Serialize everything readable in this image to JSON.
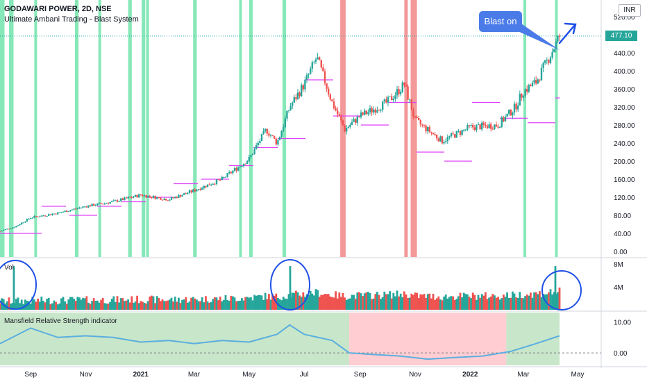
{
  "header": {
    "title": "GODAWARI POWER, 2D, NSE",
    "subtitle": "Ultimate Ambani Trading - Blast System",
    "currency": "INR",
    "last_price": "477.10"
  },
  "annotation": {
    "callout_text": "Blast on"
  },
  "colors": {
    "bull": "#26a69a",
    "bear": "#ef5350",
    "magenta_level": "#e040fb",
    "green_band": "#5ee0a0",
    "red_band": "#f08080",
    "rs_line": "#5aaee0",
    "rs_pos_fill": "#c8e6c9",
    "rs_neg_fill": "#ffcdd2",
    "circle": "#1e4fe6"
  },
  "chart_data": [
    {
      "type": "candlestick",
      "title": "GODAWARI POWER, 2D, NSE",
      "x": [
        "2020-07-29",
        "2020-08-15",
        "2020-09-01",
        "2020-10-01",
        "2020-11-01",
        "2020-12-01",
        "2021-01-01",
        "2021-02-01",
        "2021-03-01",
        "2021-04-01",
        "2021-05-01",
        "2021-05-20",
        "2021-06-01",
        "2021-06-15",
        "2021-07-01",
        "2021-07-15",
        "2021-08-01",
        "2021-08-15",
        "2021-09-01",
        "2021-10-01",
        "2021-10-20",
        "2021-11-01",
        "2021-12-01",
        "2022-01-01",
        "2022-02-01",
        "2022-02-20",
        "2022-03-01",
        "2022-03-15",
        "2022-04-01",
        "2022-04-10"
      ],
      "close": [
        45,
        55,
        75,
        85,
        100,
        110,
        125,
        115,
        135,
        160,
        205,
        270,
        240,
        320,
        370,
        430,
        330,
        270,
        300,
        330,
        370,
        290,
        245,
        275,
        280,
        320,
        355,
        375,
        440,
        477.1
      ],
      "ylim": [
        0,
        540
      ],
      "y_ticks": [
        "0.00",
        "40.00",
        "80.00",
        "120.00",
        "160.00",
        "200.00",
        "240.00",
        "280.00",
        "320.00",
        "360.00",
        "400.00",
        "440.00",
        "480.00",
        "520.00"
      ],
      "x_ticks": [
        "Sep",
        "Nov",
        "2021",
        "Mar",
        "May",
        "Jul",
        "Sep",
        "Nov",
        "2022",
        "Mar",
        "May"
      ],
      "signal_bands_green": [
        [
          "2020-07-29",
          "2020-08-03"
        ],
        [
          "2020-08-08",
          "2020-08-13"
        ],
        [
          "2020-09-05",
          "2020-09-08"
        ],
        [
          "2020-10-20",
          "2020-10-24"
        ],
        [
          "2020-11-15",
          "2020-11-18"
        ],
        [
          "2020-12-18",
          "2020-12-22"
        ],
        [
          "2021-01-02",
          "2021-01-06"
        ],
        [
          "2021-01-07",
          "2021-01-10"
        ],
        [
          "2021-02-28",
          "2021-03-04"
        ],
        [
          "2021-04-20",
          "2021-04-23"
        ],
        [
          "2021-05-01",
          "2021-05-05"
        ],
        [
          "2021-06-07",
          "2021-06-11"
        ],
        [
          "2022-03-01",
          "2022-03-04"
        ],
        [
          "2022-04-05",
          "2022-04-08"
        ]
      ],
      "signal_bands_red": [
        [
          "2021-08-10",
          "2021-08-16"
        ],
        [
          "2021-10-20",
          "2021-10-23"
        ],
        [
          "2021-10-27",
          "2021-11-03"
        ]
      ]
    },
    {
      "type": "bar",
      "title": "Vol",
      "y_ticks": [
        "4M",
        "8M"
      ],
      "ylim": [
        0,
        9000000
      ]
    },
    {
      "type": "area",
      "title": "Mansfield Relative Strength indicator",
      "x": [
        "2020-07-29",
        "2020-09-01",
        "2020-10-01",
        "2020-11-01",
        "2020-12-01",
        "2021-01-01",
        "2021-02-01",
        "2021-03-01",
        "2021-04-01",
        "2021-05-01",
        "2021-06-01",
        "2021-06-15",
        "2021-07-01",
        "2021-08-01",
        "2021-08-20",
        "2021-09-15",
        "2021-10-15",
        "2021-11-15",
        "2021-12-15",
        "2022-01-15",
        "2022-02-15",
        "2022-03-15",
        "2022-04-10"
      ],
      "values": [
        3,
        8,
        5,
        5.5,
        5,
        3.5,
        4,
        3,
        4,
        3.5,
        6,
        9,
        6,
        4,
        0,
        -0.5,
        -1,
        -2,
        -1.5,
        -1,
        0.5,
        3,
        5.5
      ],
      "y_ticks": [
        "0.00",
        "10.00"
      ],
      "ylim": [
        -4,
        13
      ]
    }
  ]
}
